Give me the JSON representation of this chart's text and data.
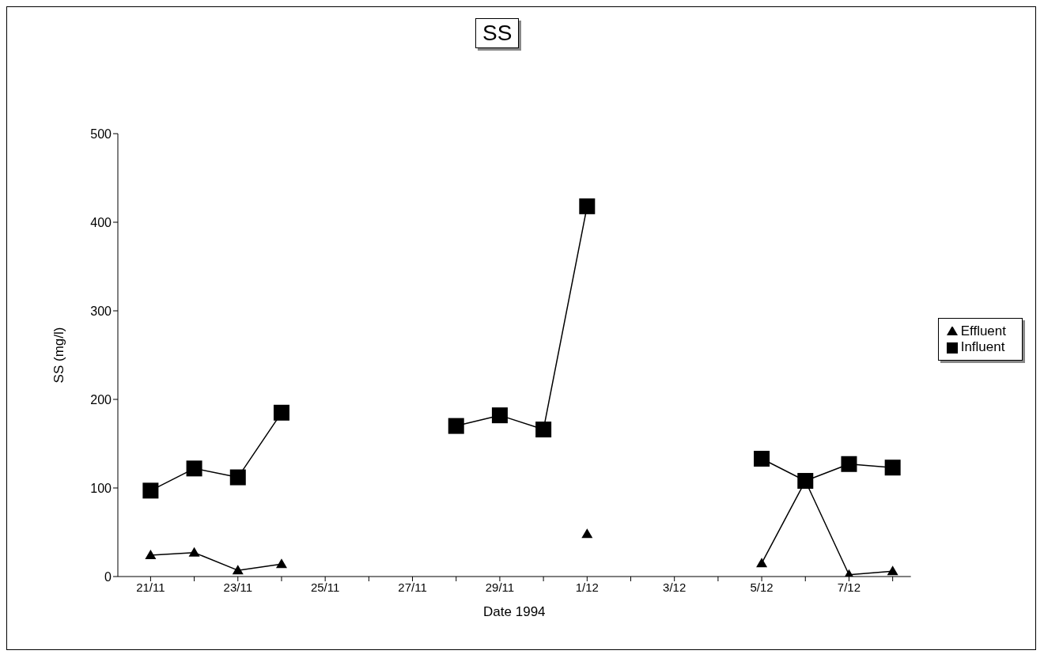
{
  "chart_data": {
    "type": "line",
    "title": "SS",
    "xlabel": "Date 1994",
    "ylabel": "SS (mg/l)",
    "x": [
      "1994-11-21",
      "1994-11-22",
      "1994-11-23",
      "1994-11-24",
      "1994-11-25",
      "1994-11-26",
      "1994-11-27",
      "1994-11-28",
      "1994-11-29",
      "1994-11-30",
      "1994-12-01",
      "1994-12-02",
      "1994-12-03",
      "1994-12-04",
      "1994-12-05",
      "1994-12-06",
      "1994-12-07",
      "1994-12-08"
    ],
    "series": [
      {
        "name": "Influent",
        "color": "#000000",
        "marker": "square",
        "values": [
          97,
          122,
          112,
          185,
          null,
          null,
          null,
          170,
          182,
          166,
          418,
          null,
          null,
          null,
          133,
          108,
          127,
          123
        ]
      },
      {
        "name": "Effluent",
        "color": "#000000",
        "marker": "triangle",
        "values": [
          24,
          27,
          7,
          14,
          null,
          null,
          null,
          null,
          null,
          null,
          48,
          null,
          null,
          null,
          15,
          108,
          2,
          6
        ]
      }
    ],
    "xlim": [
      "1994-11-20T06:00",
      "1994-12-08T10:00"
    ],
    "xticks": [
      {
        "value": "1994-11-21",
        "label": "21/11"
      },
      {
        "value": "1994-11-22",
        "label": null
      },
      {
        "value": "1994-11-23",
        "label": "23/11"
      },
      {
        "value": "1994-11-24",
        "label": null
      },
      {
        "value": "1994-11-25",
        "label": "25/11"
      },
      {
        "value": "1994-11-26",
        "label": null
      },
      {
        "value": "1994-11-27",
        "label": "27/11"
      },
      {
        "value": "1994-11-28",
        "label": null
      },
      {
        "value": "1994-11-29",
        "label": "29/11"
      },
      {
        "value": "1994-11-30",
        "label": null
      },
      {
        "value": "1994-12-01",
        "label": "1/12"
      },
      {
        "value": "1994-12-02",
        "label": null
      },
      {
        "value": "1994-12-03",
        "label": "3/12"
      },
      {
        "value": "1994-12-04",
        "label": null
      },
      {
        "value": "1994-12-05",
        "label": "5/12"
      },
      {
        "value": "1994-12-06",
        "label": null
      },
      {
        "value": "1994-12-07",
        "label": "7/12"
      },
      {
        "value": "1994-12-08",
        "label": null
      }
    ],
    "ylim": [
      0,
      500
    ],
    "yticks": [
      0,
      100,
      200,
      300,
      400,
      500
    ],
    "grid": false,
    "legend": "right",
    "line_style": "solid"
  }
}
